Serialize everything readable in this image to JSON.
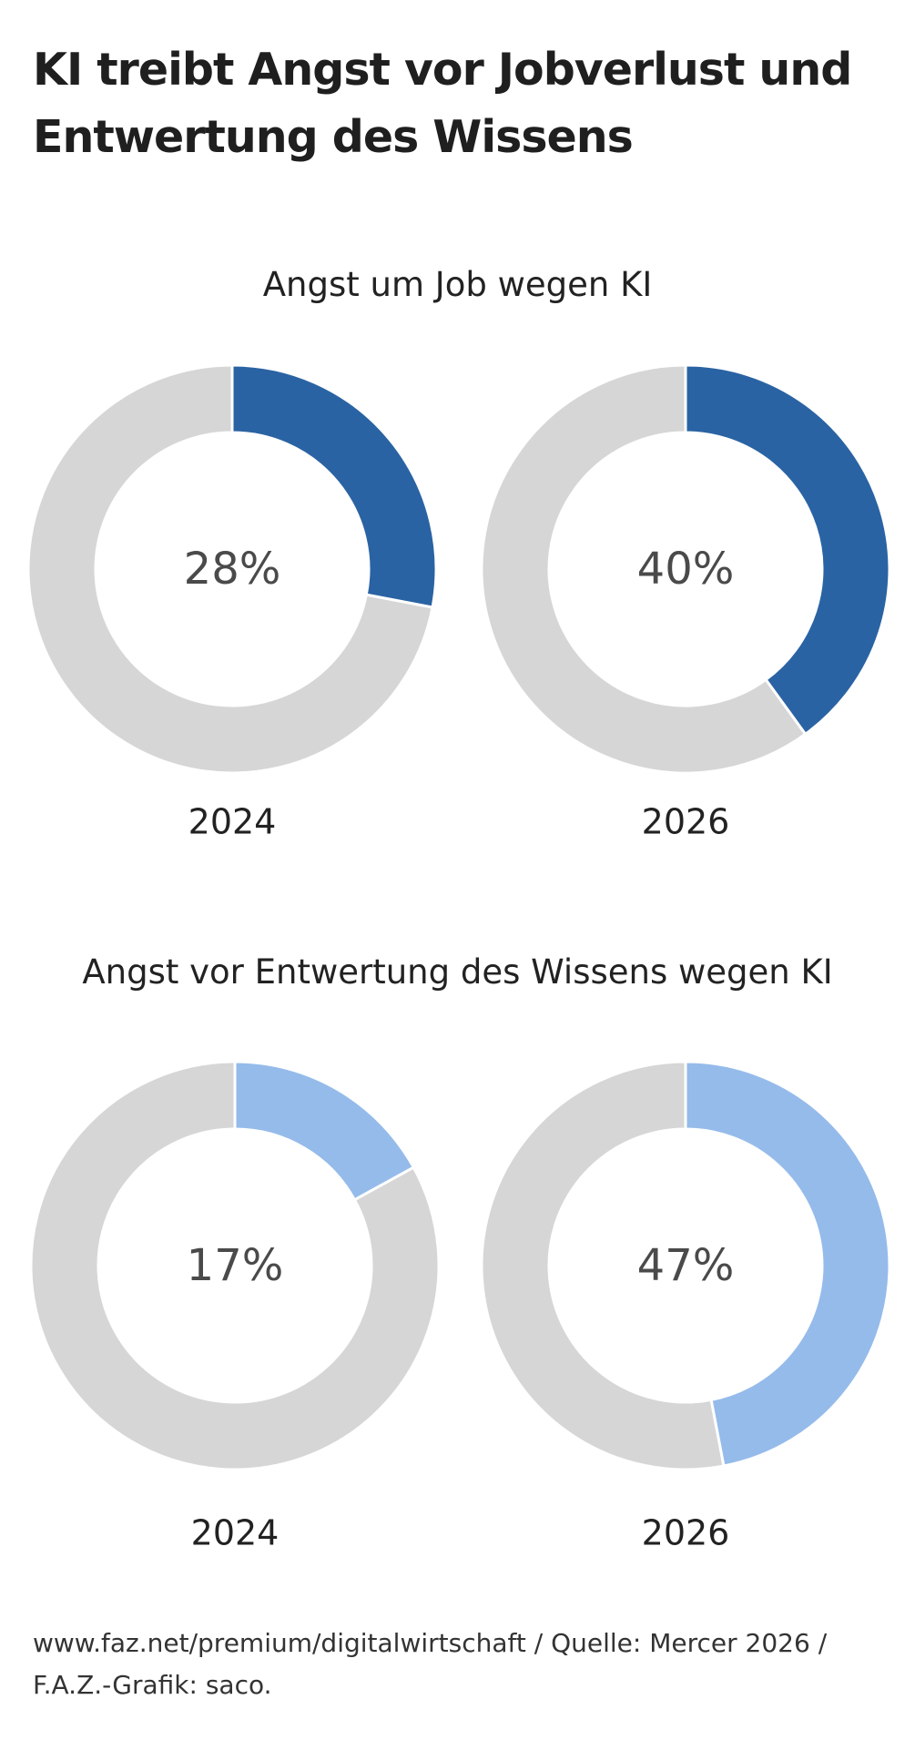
{
  "title": "KI treibt Angst vor Jobverlust und Entwertung des Wissens",
  "colors": {
    "background": "#ffffff",
    "remainder": "#d6d6d6",
    "dark_blue": "#2a63a3",
    "light_blue": "#95bbea",
    "value_text": "#4a4a4a",
    "label_text": "#222222"
  },
  "chart_data": [
    {
      "type": "pie",
      "variant": "donut",
      "title": "Angst um Job wegen KI",
      "color": "#2a63a3",
      "unit": "%",
      "categories": [
        "2024",
        "2026"
      ],
      "values": [
        28,
        40
      ],
      "value_labels": [
        "28%",
        "40%"
      ]
    },
    {
      "type": "pie",
      "variant": "donut",
      "title": "Angst vor Entwertung des Wissens wegen KI",
      "color": "#95bbea",
      "unit": "%",
      "categories": [
        "2024",
        "2026"
      ],
      "values": [
        17,
        47
      ],
      "value_labels": [
        "17%",
        "47%"
      ]
    }
  ],
  "footer": "www.faz.net/premium/digitalwirtschaft / Quelle: Mercer 2026 / F.A.Z.-Grafik: saco."
}
